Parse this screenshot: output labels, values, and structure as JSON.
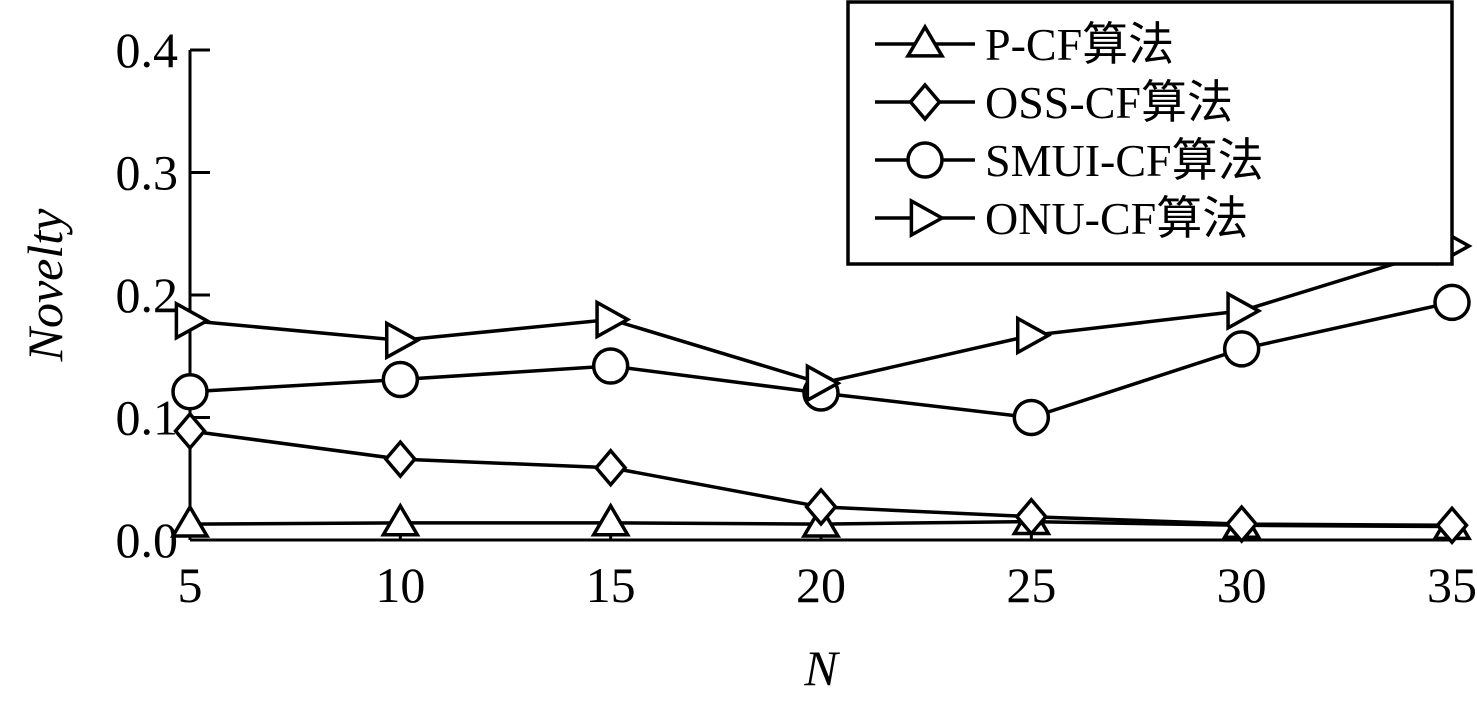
{
  "chart_data": {
    "type": "line",
    "title": "",
    "xlabel": "N",
    "ylabel": "Novelty",
    "x": [
      5,
      10,
      15,
      20,
      25,
      30,
      35
    ],
    "x_ticks": [
      "5",
      "10",
      "15",
      "20",
      "25",
      "30",
      "35"
    ],
    "y_ticks": [
      "0.0",
      "0.1",
      "0.2",
      "0.3",
      "0.4"
    ],
    "y_tick_values": [
      0,
      0.1,
      0.2,
      0.3,
      0.4
    ],
    "xlim": [
      5,
      35
    ],
    "ylim": [
      0,
      0.4
    ],
    "grid": false,
    "legend_position": "top-right",
    "series": [
      {
        "name": "P-CF算法",
        "marker": "triangle-up",
        "values": [
          0.013,
          0.014,
          0.014,
          0.013,
          0.015,
          0.012,
          0.011
        ]
      },
      {
        "name": "OSS-CF算法",
        "marker": "diamond",
        "values": [
          0.089,
          0.066,
          0.059,
          0.027,
          0.019,
          0.013,
          0.012
        ]
      },
      {
        "name": "SMUI-CF算法",
        "marker": "circle",
        "values": [
          0.121,
          0.131,
          0.142,
          0.12,
          0.1,
          0.156,
          0.194
        ]
      },
      {
        "name": "ONU-CF算法",
        "marker": "triangle-right",
        "values": [
          0.179,
          0.163,
          0.18,
          0.128,
          0.167,
          0.187,
          0.24
        ]
      }
    ]
  }
}
